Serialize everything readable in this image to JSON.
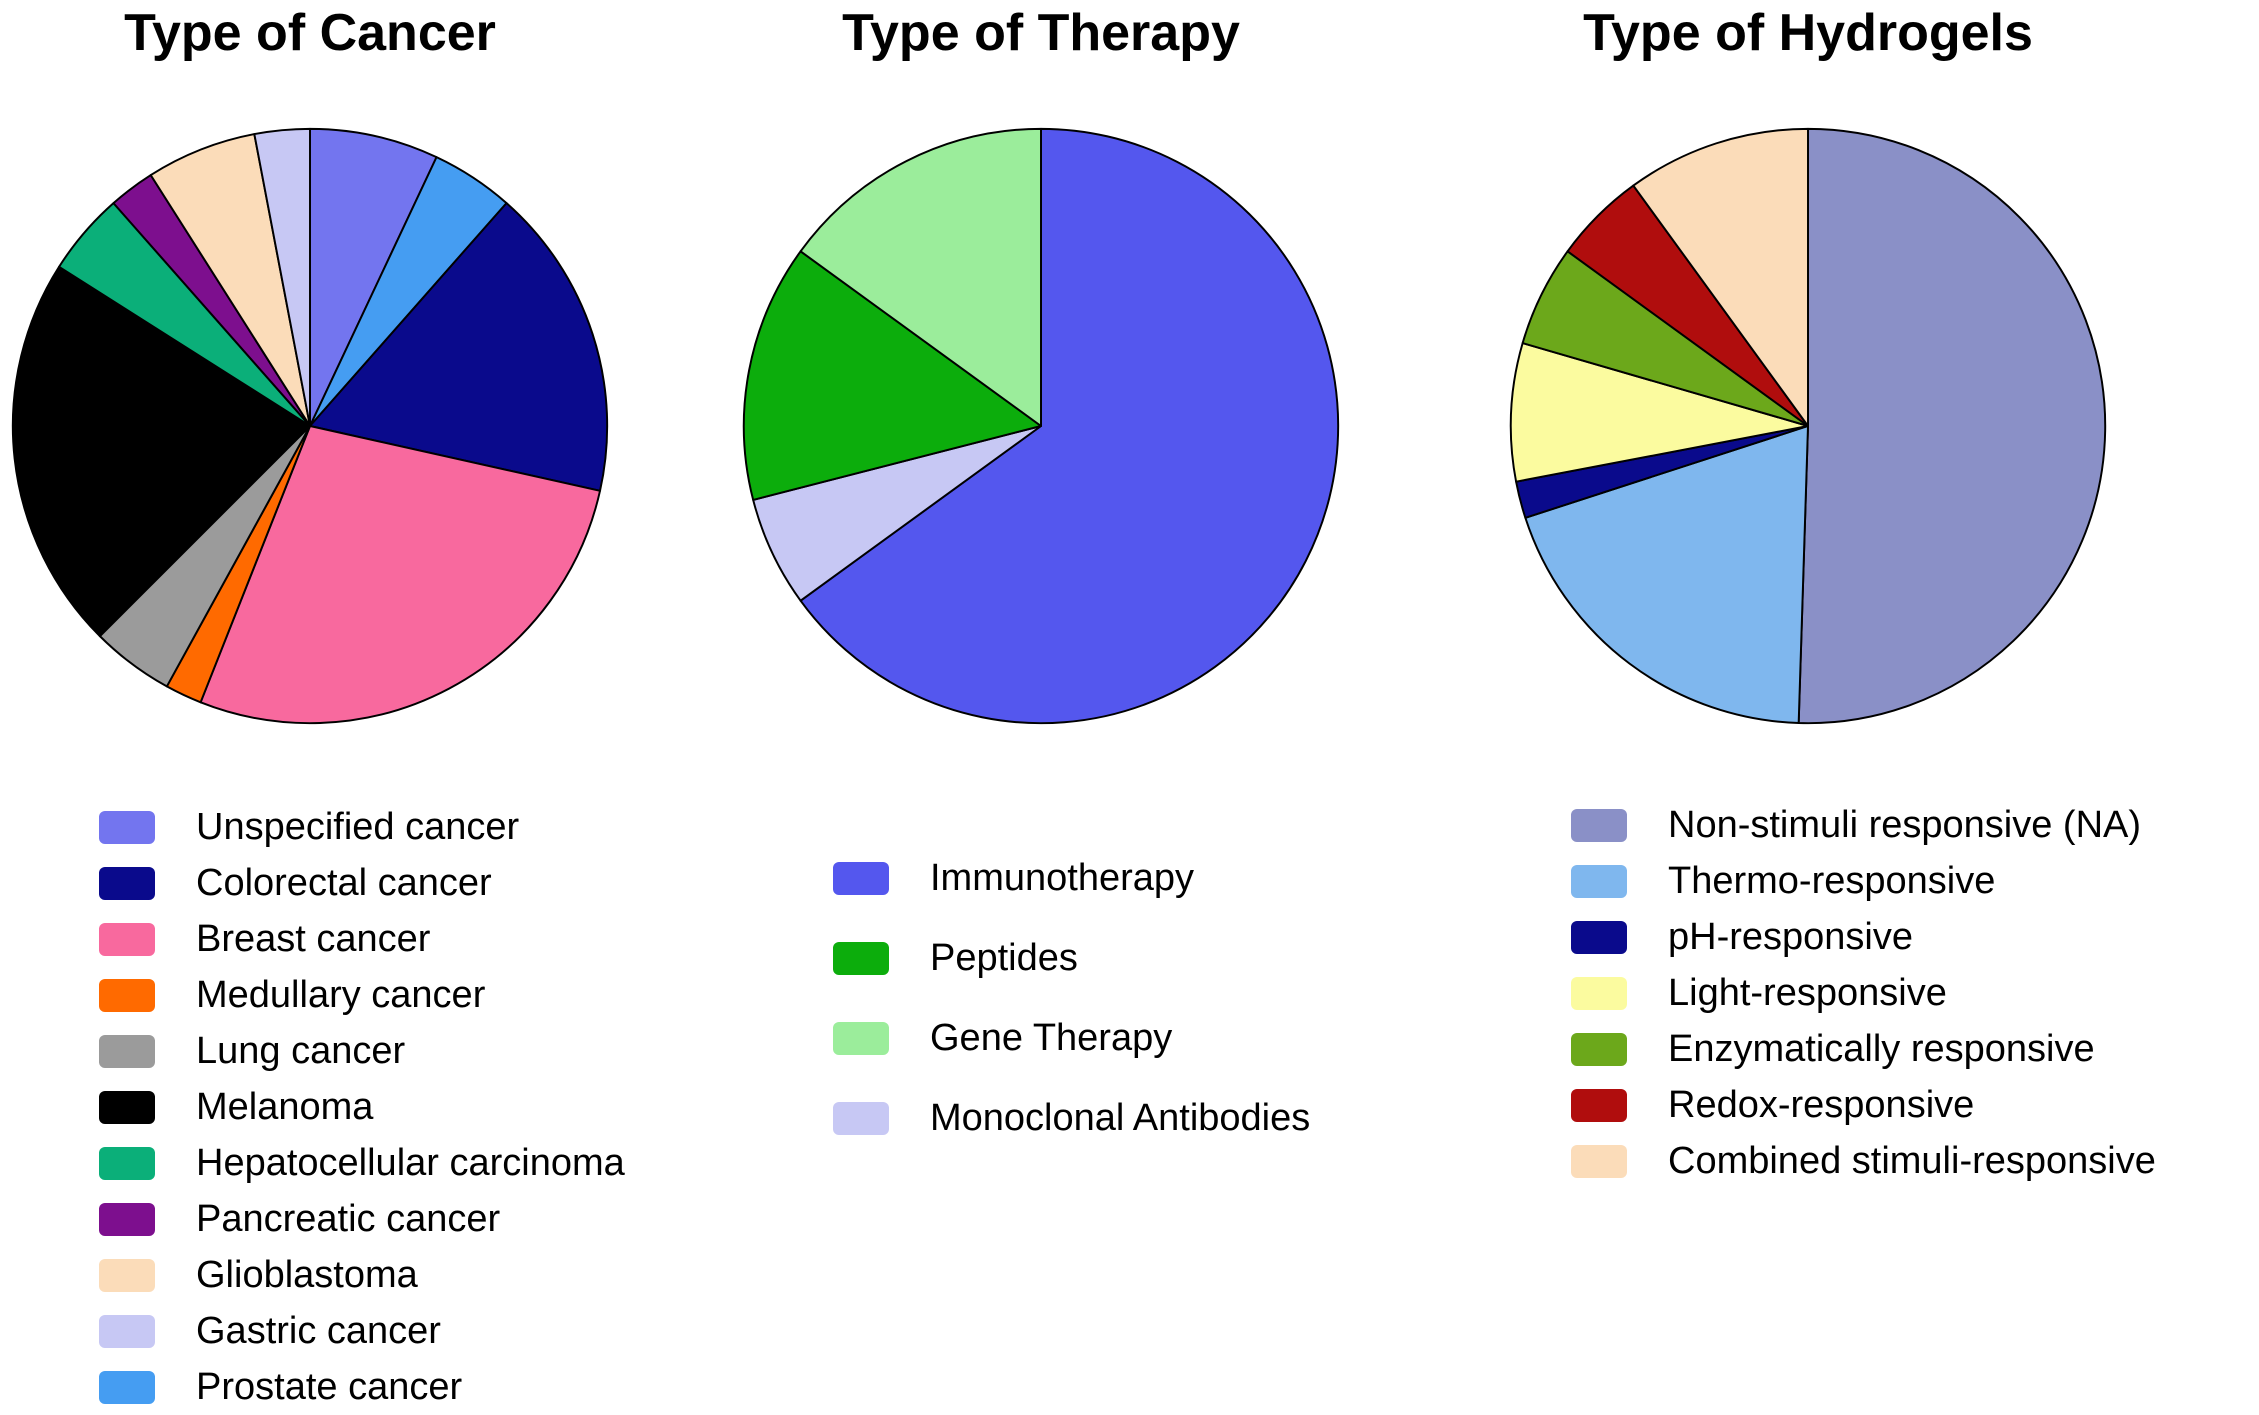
{
  "figure": {
    "background_color": "#ffffff",
    "text_color": "#000000"
  },
  "chart_data": [
    {
      "type": "pie",
      "title": "Type of Cancer",
      "legend_position": "bottom",
      "slices": [
        {
          "label": "Unspecified cancer",
          "value": 7,
          "color": "#7375EF"
        },
        {
          "label": "Prostate cancer",
          "value": 4.5,
          "color": "#459DF2"
        },
        {
          "label": "Colorectal cancer",
          "value": 17,
          "color": "#0A0A8C"
        },
        {
          "label": "Breast cancer",
          "value": 27.5,
          "color": "#F8699E"
        },
        {
          "label": "Medullary cancer",
          "value": 2,
          "color": "#FF6A00"
        },
        {
          "label": "Lung cancer",
          "value": 4.5,
          "color": "#9B9B9B"
        },
        {
          "label": "Melanoma",
          "value": 21.5,
          "color": "#000000"
        },
        {
          "label": "Hepatocellular carcinoma",
          "value": 4.5,
          "color": "#0BAF79"
        },
        {
          "label": "Pancreatic cancer",
          "value": 2.5,
          "color": "#7D0F8E"
        },
        {
          "label": "Glioblastoma",
          "value": 6,
          "color": "#FBDCB9"
        },
        {
          "label": "Gastric cancer",
          "value": 3,
          "color": "#C7C8F4"
        }
      ],
      "legend": [
        "Unspecified cancer",
        "Colorectal cancer",
        "Breast cancer",
        "Medullary cancer",
        "Lung cancer",
        "Melanoma",
        "Hepatocellular carcinoma",
        "Pancreatic cancer",
        "Glioblastoma",
        "Gastric cancer",
        "Prostate cancer"
      ]
    },
    {
      "type": "pie",
      "title": "Type of Therapy",
      "legend_position": "bottom",
      "slices": [
        {
          "label": "Immunotherapy",
          "value": 65,
          "color": "#5457EE"
        },
        {
          "label": "Monoclonal Antibodies",
          "value": 6,
          "color": "#C7C8F4"
        },
        {
          "label": "Peptides",
          "value": 14,
          "color": "#0CAD0C"
        },
        {
          "label": "Gene Therapy",
          "value": 15,
          "color": "#9BED9B"
        }
      ],
      "legend": [
        "Immunotherapy",
        "Peptides",
        "Gene Therapy",
        "Monoclonal Antibodies"
      ]
    },
    {
      "type": "pie",
      "title": "Type of Hydrogels",
      "legend_position": "bottom",
      "slices": [
        {
          "label": "Non-stimuli responsive (NA)",
          "value": 50.5,
          "color": "#8A90C7"
        },
        {
          "label": "Thermo-responsive",
          "value": 19.5,
          "color": "#7FB7EE"
        },
        {
          "label": "pH-responsive",
          "value": 2,
          "color": "#0A0A8C"
        },
        {
          "label": "Light-responsive",
          "value": 7.5,
          "color": "#FBFB9F"
        },
        {
          "label": "Enzymatically responsive",
          "value": 5.5,
          "color": "#6CA81B"
        },
        {
          "label": "Redox-responsive",
          "value": 5,
          "color": "#B00D0D"
        },
        {
          "label": "Combined stimuli-responsive",
          "value": 10,
          "color": "#FBDCB9"
        }
      ],
      "legend": [
        "Non-stimuli responsive (NA)",
        "Thermo-responsive",
        "pH-responsive",
        "Light-responsive",
        "Enzymatically responsive",
        "Redox-responsive",
        "Combined stimuli-responsive"
      ]
    }
  ]
}
